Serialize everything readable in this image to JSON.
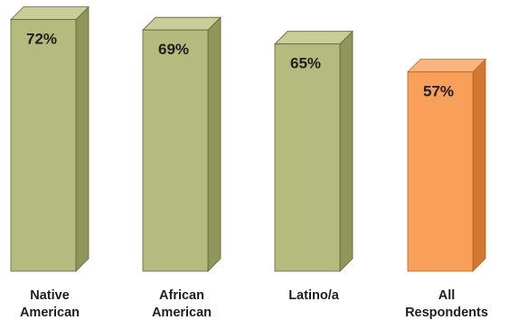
{
  "chart_data": {
    "type": "bar",
    "categories": [
      [
        "Native",
        "American"
      ],
      [
        "African",
        "American"
      ],
      [
        "Latino/a"
      ],
      [
        "All",
        "Respondents"
      ]
    ],
    "values": [
      72,
      69,
      65,
      57
    ],
    "labels": [
      "72%",
      "69%",
      "65%",
      "57%"
    ],
    "ylim": [
      0,
      75
    ],
    "colors": {
      "group": "#b5ba7e",
      "group_side": "#8f9659",
      "group_top": "#c9cd98",
      "group_edge": "#5e6437",
      "overall": "#f8a05a",
      "overall_side": "#d27832",
      "overall_top": "#fab57f",
      "overall_edge": "#b8621c"
    },
    "highlight_index": 3,
    "grid": false,
    "legend": "none"
  }
}
